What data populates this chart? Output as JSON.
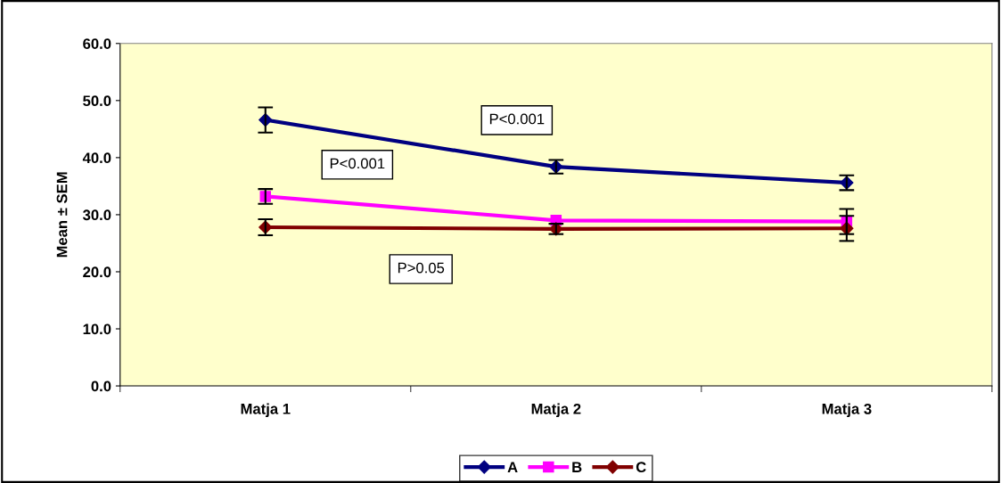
{
  "chart_data": {
    "type": "line",
    "ylabel": "Mean ± SEM",
    "categories": [
      "Matja 1",
      "Matja 2",
      "Matja 3"
    ],
    "series": [
      {
        "name": "A",
        "color": "#000080",
        "marker": "diamond",
        "values": [
          46.6,
          38.4,
          35.6
        ],
        "errors": [
          2.2,
          1.2,
          1.3
        ]
      },
      {
        "name": "B",
        "color": "#ff00ff",
        "marker": "square",
        "values": [
          33.2,
          29.0,
          28.8
        ],
        "errors": [
          1.3,
          null,
          2.2
        ]
      },
      {
        "name": "C",
        "color": "#800000",
        "marker": "diamond",
        "values": [
          27.8,
          27.5,
          27.6
        ],
        "errors": [
          1.4,
          0.9,
          2.2
        ]
      }
    ],
    "ylim": [
      0,
      60
    ],
    "yticks": [
      {
        "value": 0,
        "label": "0.0"
      },
      {
        "value": 10,
        "label": "10.0"
      },
      {
        "value": 20,
        "label": "20.0"
      },
      {
        "value": 30,
        "label": "30.0"
      },
      {
        "value": 40,
        "label": "40.0"
      },
      {
        "value": 50,
        "label": "50.0"
      },
      {
        "value": 60,
        "label": "60.0"
      }
    ],
    "annotations": [
      "P<0.001",
      "P<0.001",
      "P>0.05"
    ],
    "grid": false,
    "legend": "bottom",
    "line_style": "solid"
  }
}
